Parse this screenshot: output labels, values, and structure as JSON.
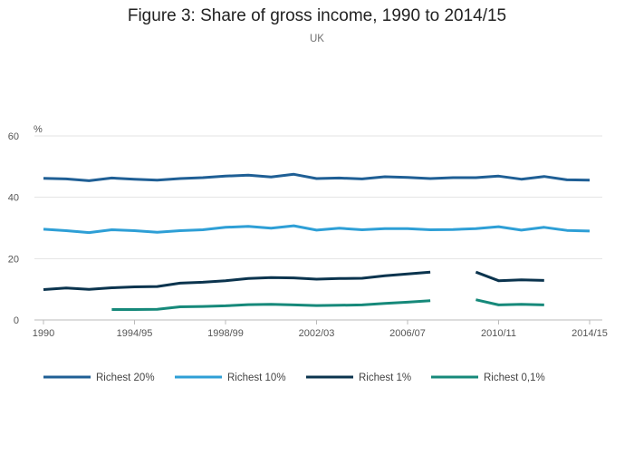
{
  "chart_data": {
    "type": "line",
    "title": "Figure 3: Share of gross income, 1990 to 2014/15",
    "subtitle": "UK",
    "ylabel": "%",
    "xlabel": "",
    "ylim": [
      0,
      60
    ],
    "yticks": [
      0,
      20,
      40,
      60
    ],
    "grid": true,
    "legend_position": "bottom",
    "x": [
      "1990",
      "1991",
      "1992",
      "1993/94",
      "1994/95",
      "1995/96",
      "1996/97",
      "1997/98",
      "1998/99",
      "1999/00",
      "2000/01",
      "2001/02",
      "2002/03",
      "2003/04",
      "2004/05",
      "2005/06",
      "2006/07",
      "2007/08",
      "2008/09",
      "2009/10",
      "2010/11",
      "2011/12",
      "2012/13",
      "2013/14",
      "2014/15"
    ],
    "xticks": [
      "1990",
      "1994/95",
      "1998/99",
      "2002/03",
      "2006/07",
      "2010/11",
      "2014/15"
    ],
    "series": [
      {
        "name": "Richest 20%",
        "color": "#1f5f95",
        "values": [
          46.2,
          46.0,
          45.4,
          46.3,
          45.9,
          45.6,
          46.1,
          46.4,
          46.9,
          47.2,
          46.6,
          47.5,
          46.1,
          46.3,
          46.0,
          46.7,
          46.5,
          46.1,
          46.4,
          46.4,
          46.9,
          45.9,
          46.8,
          45.7,
          45.6
        ]
      },
      {
        "name": "Richest 10%",
        "color": "#2e9fd6",
        "values": [
          29.6,
          29.1,
          28.5,
          29.4,
          29.1,
          28.6,
          29.1,
          29.4,
          30.2,
          30.5,
          29.9,
          30.7,
          29.3,
          29.9,
          29.4,
          29.8,
          29.8,
          29.4,
          29.5,
          29.8,
          30.4,
          29.3,
          30.2,
          29.2,
          29.0
        ]
      },
      {
        "name": "Richest 1%",
        "color": "#0b344e",
        "values": [
          9.9,
          10.4,
          10.0,
          10.5,
          10.8,
          10.9,
          12.0,
          12.3,
          12.8,
          13.5,
          13.8,
          13.7,
          13.3,
          13.5,
          13.6,
          14.4,
          15.0,
          15.6,
          null,
          15.6,
          12.8,
          13.1,
          12.9,
          null,
          null
        ]
      },
      {
        "name": "Richest 0,1%",
        "color": "#16897a",
        "values": [
          null,
          null,
          null,
          3.4,
          3.4,
          3.5,
          4.3,
          4.4,
          4.6,
          5.0,
          5.1,
          4.9,
          4.7,
          4.8,
          4.9,
          5.4,
          5.8,
          6.3,
          null,
          6.6,
          4.9,
          5.1,
          4.9,
          null,
          null
        ]
      }
    ]
  }
}
